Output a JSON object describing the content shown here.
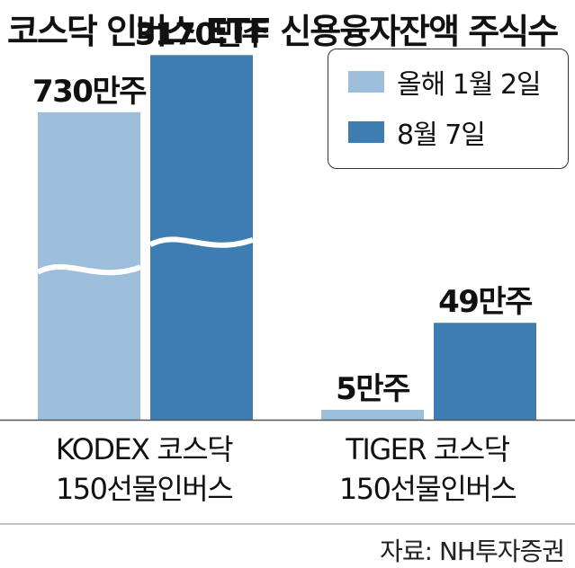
{
  "chart_data": {
    "type": "bar",
    "title": "코스닥 인버스 ETF 신용융자잔액 주식수",
    "categories": [
      "KODEX 코스닥 150선물인버스",
      "TIGER 코스닥 150선물인버스"
    ],
    "category_lines": [
      [
        "KODEX 코스닥",
        "150선물인버스"
      ],
      [
        "TIGER 코스닥",
        "150선물인버스"
      ]
    ],
    "series": [
      {
        "name": "올해 1월 2일",
        "values": [
          730,
          5
        ],
        "labels": [
          "730만주",
          "5만주"
        ],
        "color": "#9dbfdb"
      },
      {
        "name": "8월 7일",
        "values": [
          3170,
          49
        ],
        "labels": [
          "3170만주",
          "49만주"
        ],
        "color": "#3d7db1"
      }
    ],
    "unit": "만주",
    "axis_broken": true,
    "legend_position": "top-right",
    "source": "자료: NH투자증권"
  }
}
